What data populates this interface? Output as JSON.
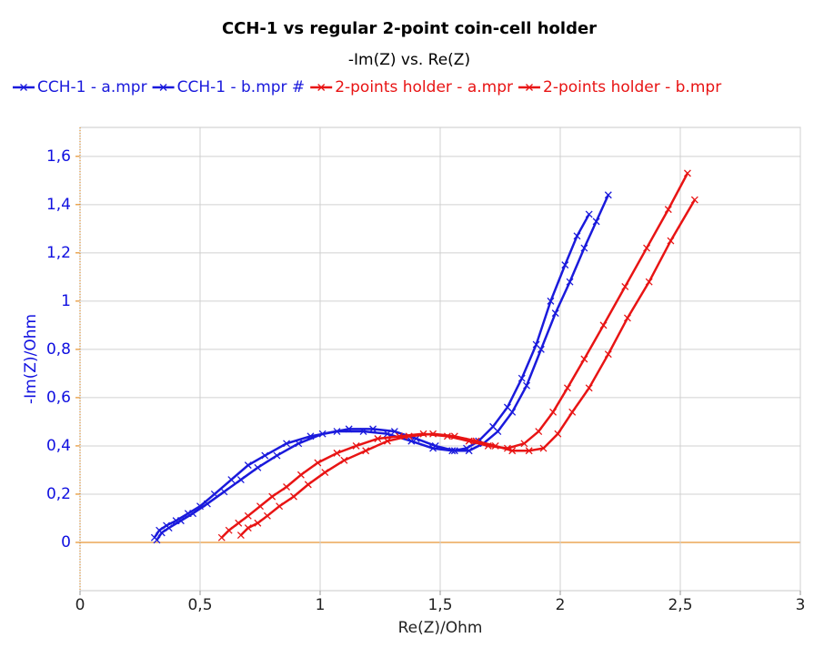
{
  "chart_data": {
    "type": "scatter-line",
    "title": "CCH-1 vs regular 2-point coin-cell holder",
    "subtitle": "-Im(Z) vs. Re(Z)",
    "x_label": "Re(Z)/Ohm",
    "y_label": "-Im(Z)/Ohm",
    "y_axis_color": "#1010e0",
    "axis_color": "#e07b00",
    "grid": true,
    "legend": "top",
    "xlim": [
      0,
      3
    ],
    "xticks": [
      0,
      {
        "value": 0.5,
        "label": "0,5"
      },
      1,
      {
        "value": 1.5,
        "label": "1,5"
      },
      2,
      {
        "value": 2.5,
        "label": "2,5"
      },
      3
    ],
    "ylim": [
      -0.2,
      1.72
    ],
    "yticks": [
      0,
      {
        "value": 0.2,
        "label": "0,2"
      },
      {
        "value": 0.4,
        "label": "0,4"
      },
      {
        "value": 0.6,
        "label": "0,6"
      },
      {
        "value": 0.8,
        "label": "0,8"
      },
      1,
      {
        "value": 1.2,
        "label": "1,2"
      },
      {
        "value": 1.4,
        "label": "1,4"
      },
      {
        "value": 1.6,
        "label": "1,6"
      }
    ],
    "series": [
      {
        "name": "CCH-1 - a.mpr",
        "color": "#1a1adc",
        "x": [
          0.31,
          0.33,
          0.36,
          0.4,
          0.45,
          0.5,
          0.56,
          0.63,
          0.7,
          0.77,
          0.86,
          0.96,
          1.07,
          1.18,
          1.28,
          1.38,
          1.47,
          1.55,
          1.61,
          1.66,
          1.72,
          1.78,
          1.84,
          1.9,
          1.96,
          2.02,
          2.07,
          2.12
        ],
        "values": [
          0.02,
          0.05,
          0.07,
          0.09,
          0.12,
          0.15,
          0.2,
          0.26,
          0.32,
          0.36,
          0.41,
          0.44,
          0.46,
          0.46,
          0.45,
          0.42,
          0.39,
          0.38,
          0.39,
          0.42,
          0.48,
          0.56,
          0.68,
          0.82,
          1.0,
          1.15,
          1.27,
          1.36
        ]
      },
      {
        "name": "CCH-1 - b.mpr #",
        "color": "#1a1adc",
        "x": [
          0.32,
          0.34,
          0.37,
          0.42,
          0.47,
          0.53,
          0.6,
          0.67,
          0.74,
          0.82,
          0.91,
          1.01,
          1.12,
          1.22,
          1.31,
          1.4,
          1.48,
          1.56,
          1.62,
          1.68,
          1.74,
          1.8,
          1.86,
          1.92,
          1.98,
          2.04,
          2.1,
          2.15,
          2.2
        ],
        "values": [
          0.01,
          0.04,
          0.06,
          0.09,
          0.12,
          0.16,
          0.21,
          0.26,
          0.31,
          0.36,
          0.41,
          0.45,
          0.47,
          0.47,
          0.46,
          0.43,
          0.4,
          0.38,
          0.38,
          0.41,
          0.46,
          0.54,
          0.65,
          0.8,
          0.95,
          1.08,
          1.22,
          1.33,
          1.44
        ]
      },
      {
        "name": "2-points holder - a.mpr",
        "color": "#e81414",
        "x": [
          0.59,
          0.62,
          0.66,
          0.7,
          0.75,
          0.8,
          0.86,
          0.92,
          0.99,
          1.07,
          1.15,
          1.24,
          1.33,
          1.43,
          1.53,
          1.62,
          1.7,
          1.78,
          1.85,
          1.91,
          1.97,
          2.03,
          2.1,
          2.18,
          2.27,
          2.36,
          2.45,
          2.53
        ],
        "values": [
          0.02,
          0.05,
          0.08,
          0.11,
          0.15,
          0.19,
          0.23,
          0.28,
          0.33,
          0.37,
          0.4,
          0.43,
          0.44,
          0.45,
          0.44,
          0.42,
          0.4,
          0.39,
          0.41,
          0.46,
          0.54,
          0.64,
          0.76,
          0.9,
          1.06,
          1.22,
          1.38,
          1.53
        ]
      },
      {
        "name": "2-points holder - b.mpr",
        "color": "#e81414",
        "x": [
          0.67,
          0.7,
          0.74,
          0.78,
          0.83,
          0.89,
          0.95,
          1.02,
          1.1,
          1.19,
          1.28,
          1.37,
          1.47,
          1.56,
          1.65,
          1.73,
          1.8,
          1.87,
          1.93,
          1.99,
          2.05,
          2.12,
          2.2,
          2.28,
          2.37,
          2.46,
          2.56
        ],
        "values": [
          0.03,
          0.06,
          0.08,
          0.11,
          0.15,
          0.19,
          0.24,
          0.29,
          0.34,
          0.38,
          0.42,
          0.44,
          0.45,
          0.44,
          0.42,
          0.4,
          0.38,
          0.38,
          0.39,
          0.45,
          0.54,
          0.64,
          0.78,
          0.93,
          1.08,
          1.25,
          1.42
        ]
      }
    ]
  }
}
